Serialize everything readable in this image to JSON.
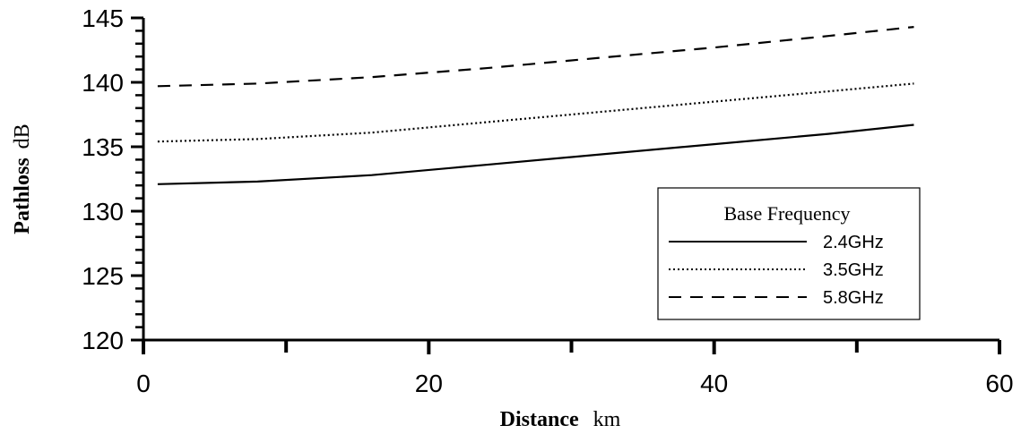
{
  "chart_data": {
    "type": "line",
    "xlabel": {
      "main": "Distance",
      "unit": "km"
    },
    "ylabel": {
      "main": "Pathloss",
      "unit": "dB"
    },
    "xlim": [
      0,
      60
    ],
    "ylim": [
      120,
      145
    ],
    "x_ticks": [
      0,
      20,
      40,
      60
    ],
    "x_minor_ticks": [
      10,
      30,
      50
    ],
    "y_ticks": [
      120,
      125,
      130,
      135,
      140,
      145
    ],
    "grid": false,
    "legend": {
      "title": "Base Frequency",
      "placement": "lower-right",
      "entries": [
        "2.4GHz",
        "3.5GHz",
        "5.8GHz"
      ]
    },
    "series": [
      {
        "name": "2.4GHz",
        "line_style": "solid",
        "x": [
          1,
          8,
          16,
          24,
          32,
          40,
          48,
          54
        ],
        "y": [
          132.1,
          132.3,
          132.8,
          133.6,
          134.4,
          135.2,
          136.0,
          136.7
        ]
      },
      {
        "name": "3.5GHz",
        "line_style": "dotted",
        "x": [
          1,
          8,
          16,
          24,
          32,
          40,
          48,
          54
        ],
        "y": [
          135.4,
          135.6,
          136.1,
          136.9,
          137.7,
          138.5,
          139.3,
          139.9
        ]
      },
      {
        "name": "5.8GHz",
        "line_style": "dashed",
        "x": [
          1,
          8,
          16,
          24,
          32,
          40,
          48,
          54
        ],
        "y": [
          139.7,
          139.9,
          140.4,
          141.1,
          141.9,
          142.7,
          143.6,
          144.3
        ]
      }
    ]
  }
}
